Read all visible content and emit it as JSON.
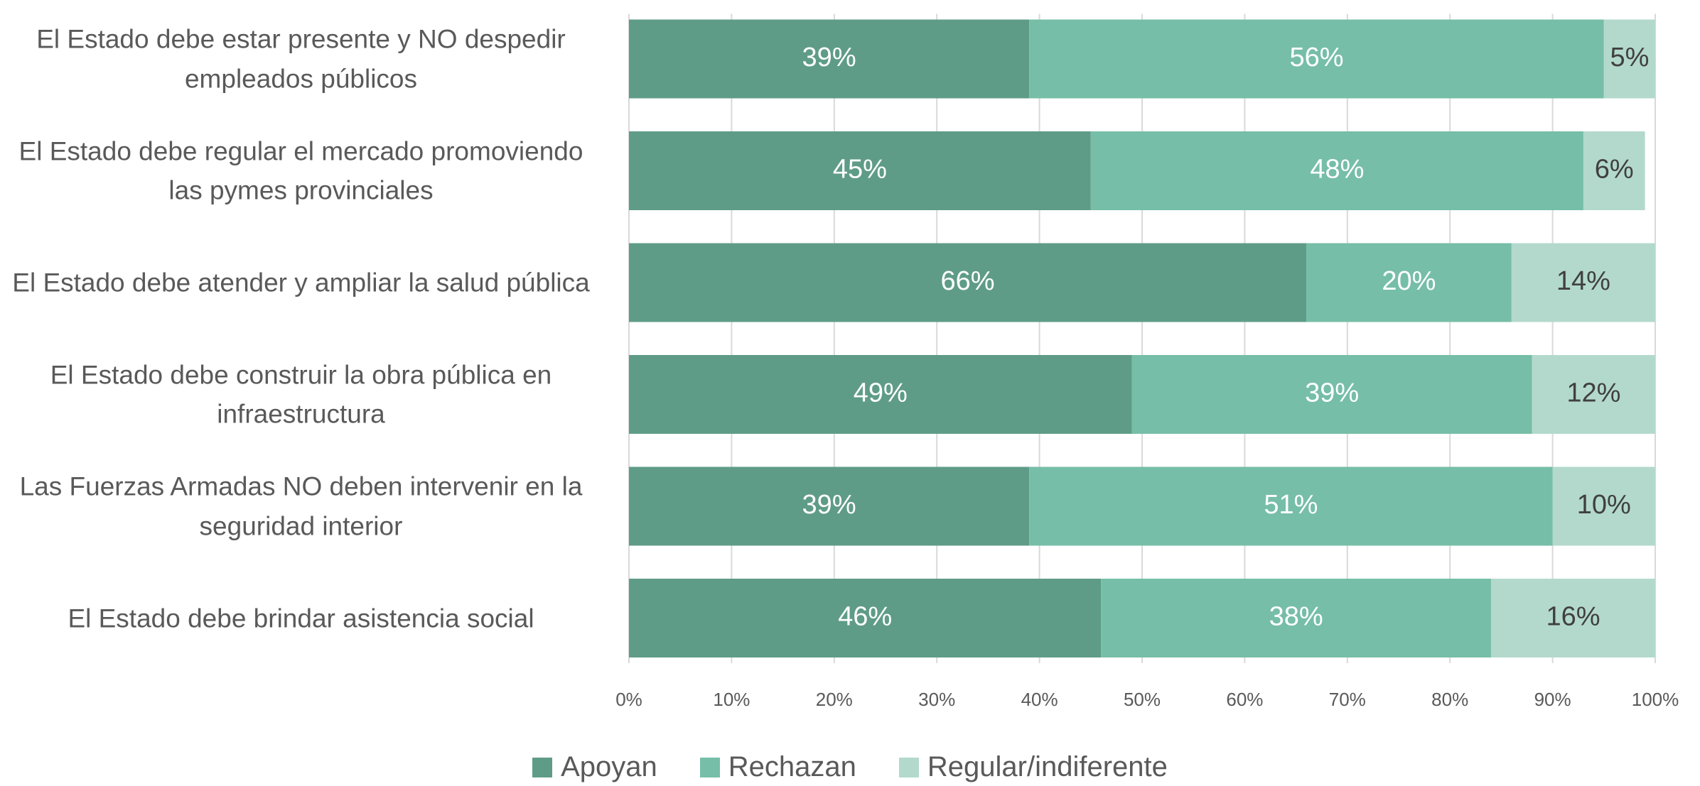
{
  "chart_data": {
    "type": "stacked-bar-horizontal",
    "categories": [
      "El Estado debe estar presente y NO despedir empleados públicos",
      "El Estado debe regular el mercado promoviendo las pymes provinciales",
      "El Estado debe atender y ampliar la salud pública",
      "El Estado debe construir la obra pública en infraestructura",
      "Las Fuerzas Armadas NO deben intervenir en la seguridad interior",
      "El Estado debe brindar asistencia social"
    ],
    "series": [
      {
        "name": "Apoyan",
        "color": "#5f9c87",
        "label_color": "#ffffff",
        "values": [
          39,
          45,
          66,
          49,
          39,
          46
        ],
        "value_labels": [
          "39%",
          "45%",
          "66%",
          "49%",
          "39%",
          "46%"
        ]
      },
      {
        "name": "Rechazan",
        "color": "#76bea7",
        "label_color": "#ffffff",
        "values": [
          56,
          48,
          20,
          39,
          51,
          38
        ],
        "value_labels": [
          "56%",
          "48%",
          "20%",
          "39%",
          "51%",
          "38%"
        ]
      },
      {
        "name": "Regular/indiferente",
        "color": "#b3d9cc",
        "label_color": "#404040",
        "values": [
          5,
          6,
          14,
          12,
          10,
          16
        ],
        "value_labels": [
          "5%",
          "6%",
          "14%",
          "12%",
          "10%",
          "16%"
        ]
      }
    ],
    "xlim": [
      0,
      100
    ],
    "xticks": [
      {
        "value": 0,
        "label": "0%"
      },
      {
        "value": 10,
        "label": "10%"
      },
      {
        "value": 20,
        "label": "20%"
      },
      {
        "value": 30,
        "label": "30%"
      },
      {
        "value": 40,
        "label": "40%"
      },
      {
        "value": 50,
        "label": "50%"
      },
      {
        "value": 60,
        "label": "60%"
      },
      {
        "value": 70,
        "label": "70%"
      },
      {
        "value": 80,
        "label": "80%"
      },
      {
        "value": 90,
        "label": "90%"
      },
      {
        "value": 100,
        "label": "100%"
      }
    ],
    "grid": true,
    "legend": "bottom"
  }
}
